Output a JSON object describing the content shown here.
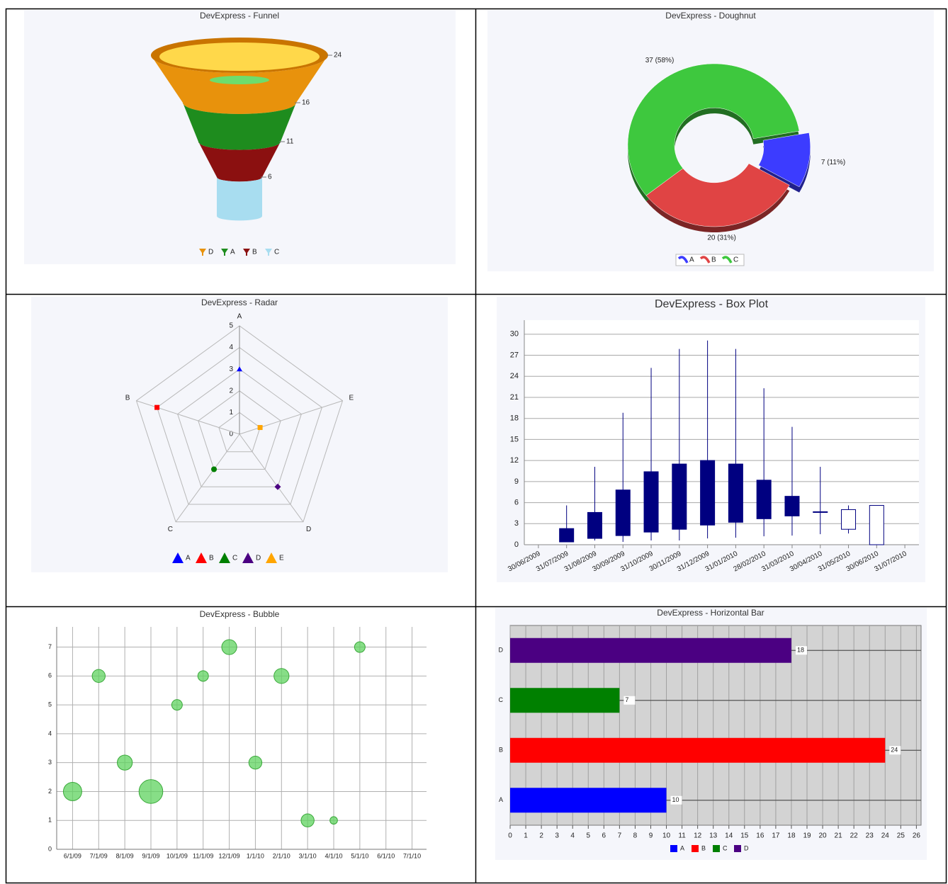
{
  "chart_data": [
    {
      "type": "funnel",
      "title": "DevExpress - Funnel",
      "categories": [
        "D",
        "A",
        "B",
        "C"
      ],
      "values": [
        24,
        16,
        11,
        6
      ],
      "colors": [
        "#e8920c",
        "#1e8c1e",
        "#8b1010",
        "#a8ddf0"
      ]
    },
    {
      "type": "doughnut",
      "title": "DevExpress - Doughnut",
      "categories": [
        "A",
        "B",
        "C"
      ],
      "values": [
        7,
        20,
        37
      ],
      "value_labels": [
        "7 (11%)",
        "20 (31%)",
        "37 (58%)"
      ],
      "colors": [
        "#3c3cff",
        "#e04444",
        "#3ec83e"
      ]
    },
    {
      "type": "radar",
      "title": "DevExpress - Radar",
      "categories": [
        "A",
        "B",
        "C",
        "D",
        "E"
      ],
      "ylim": [
        0,
        5
      ],
      "yticks": [
        0,
        1,
        2,
        3,
        4,
        5
      ],
      "series": [
        {
          "name": "A",
          "color": "#0000ff",
          "values": [
            3,
            null,
            null,
            null,
            null
          ]
        },
        {
          "name": "B",
          "color": "#ff0000",
          "values": [
            null,
            4,
            null,
            null,
            null
          ]
        },
        {
          "name": "C",
          "color": "#008000",
          "values": [
            null,
            null,
            2,
            null,
            null
          ]
        },
        {
          "name": "D",
          "color": "#4b0082",
          "values": [
            null,
            null,
            null,
            3,
            null
          ]
        },
        {
          "name": "E",
          "color": "#ffa500",
          "values": [
            null,
            null,
            null,
            null,
            1
          ]
        }
      ]
    },
    {
      "type": "box",
      "title": "DevExpress - Box Plot",
      "x": [
        "30/06/2009",
        "31/07/2009",
        "31/08/2009",
        "30/09/2009",
        "31/10/2009",
        "30/11/2009",
        "31/12/2009",
        "31/01/2010",
        "28/02/2010",
        "31/03/2010",
        "30/04/2010",
        "31/05/2010",
        "30/06/2010",
        "31/07/2010"
      ],
      "min": [
        null,
        0.4,
        0.6,
        0.4,
        0.6,
        0.6,
        0.9,
        1.0,
        1.2,
        1.3,
        1.5,
        1.6,
        0,
        null
      ],
      "q1": [
        null,
        0.4,
        0.9,
        1.3,
        1.8,
        2.2,
        2.8,
        3.2,
        3.7,
        4.1,
        4.6,
        2.2,
        0,
        null
      ],
      "q3": [
        null,
        2.3,
        4.6,
        7.8,
        10.4,
        11.5,
        12.0,
        11.5,
        9.2,
        6.9,
        4.7,
        5.0,
        5.6,
        null
      ],
      "max": [
        null,
        5.6,
        11.1,
        18.8,
        25.2,
        27.9,
        29.1,
        27.9,
        22.3,
        16.8,
        11.1,
        5.6,
        5.6,
        null
      ],
      "color": "#000080",
      "fills": [
        null,
        "#000080",
        "#000080",
        "#000080",
        "#000080",
        "#000080",
        "#000080",
        "#000080",
        "#000080",
        "#000080",
        "#000080",
        "#ffffff",
        "#ffffff",
        null
      ],
      "ylim": [
        0,
        32
      ],
      "yticks": [
        0,
        3,
        6,
        9,
        12,
        15,
        18,
        21,
        24,
        27,
        30
      ],
      "grid": true
    },
    {
      "type": "bubble",
      "title": "DevExpress - Bubble",
      "categories": [
        "6/1/09",
        "7/1/09",
        "8/1/09",
        "9/1/09",
        "10/1/09",
        "11/1/09",
        "12/1/09",
        "1/1/10",
        "2/1/10",
        "3/1/10",
        "4/1/10",
        "5/1/10",
        "6/1/10",
        "7/1/10"
      ],
      "values": [
        2,
        6,
        3,
        2,
        5,
        6,
        7,
        3,
        6,
        1,
        1,
        7,
        null,
        null
      ],
      "sizes": [
        3,
        1.5,
        2,
        5,
        1,
        1,
        2,
        1.5,
        2,
        1.5,
        0.5,
        1,
        null,
        null
      ],
      "color": "#5fd35f",
      "ylim": [
        0,
        7.7
      ],
      "yticks": [
        0,
        1,
        2,
        3,
        4,
        5,
        6,
        7
      ],
      "grid": true
    },
    {
      "type": "hbar",
      "title": "DevExpress - Horizontal Bar",
      "categories": [
        "A",
        "B",
        "C",
        "D"
      ],
      "values": [
        10,
        24,
        7,
        18
      ],
      "colors": [
        "#0000ff",
        "#ff0000",
        "#008000",
        "#4b0082"
      ],
      "xlim": [
        0,
        26.3
      ],
      "xticks": [
        0,
        1,
        2,
        3,
        4,
        5,
        6,
        7,
        8,
        9,
        10,
        11,
        12,
        13,
        14,
        15,
        16,
        17,
        18,
        19,
        20,
        21,
        22,
        23,
        24,
        25,
        26
      ],
      "grid": true
    }
  ]
}
